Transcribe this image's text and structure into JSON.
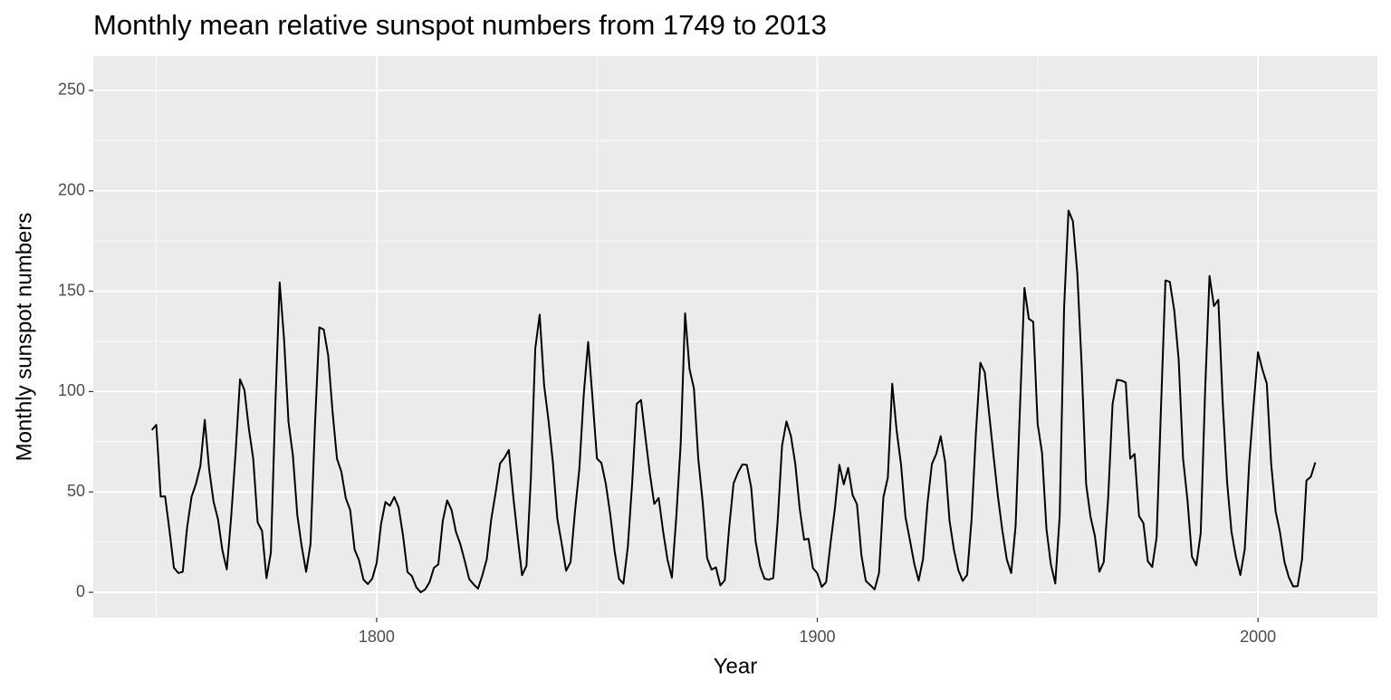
{
  "chart_data": {
    "type": "line",
    "title": "Monthly mean relative sunspot numbers from 1749 to 2013",
    "xlabel": "Year",
    "ylabel": "Monthly sunspot numbers",
    "xlim": [
      1735.7,
      2027.1
    ],
    "xticks": [
      1800,
      1900,
      2000
    ],
    "ylim": [
      -12.6,
      267.1
    ],
    "yticks": [
      0,
      50,
      100,
      150,
      200,
      250
    ],
    "grid": true,
    "x": [
      1749,
      1750,
      1751,
      1752,
      1753,
      1754,
      1755,
      1756,
      1757,
      1758,
      1759,
      1760,
      1761,
      1762,
      1763,
      1764,
      1765,
      1766,
      1767,
      1768,
      1769,
      1770,
      1771,
      1772,
      1773,
      1774,
      1775,
      1776,
      1777,
      1778,
      1779,
      1780,
      1781,
      1782,
      1783,
      1784,
      1785,
      1786,
      1787,
      1788,
      1789,
      1790,
      1791,
      1792,
      1793,
      1794,
      1795,
      1796,
      1797,
      1798,
      1799,
      1800,
      1801,
      1802,
      1803,
      1804,
      1805,
      1806,
      1807,
      1808,
      1809,
      1810,
      1811,
      1812,
      1813,
      1814,
      1815,
      1816,
      1817,
      1818,
      1819,
      1820,
      1821,
      1822,
      1823,
      1824,
      1825,
      1826,
      1827,
      1828,
      1829,
      1830,
      1831,
      1832,
      1833,
      1834,
      1835,
      1836,
      1837,
      1838,
      1839,
      1840,
      1841,
      1842,
      1843,
      1844,
      1845,
      1846,
      1847,
      1848,
      1849,
      1850,
      1851,
      1852,
      1853,
      1854,
      1855,
      1856,
      1857,
      1858,
      1859,
      1860,
      1861,
      1862,
      1863,
      1864,
      1865,
      1866,
      1867,
      1868,
      1869,
      1870,
      1871,
      1872,
      1873,
      1874,
      1875,
      1876,
      1877,
      1878,
      1879,
      1880,
      1881,
      1882,
      1883,
      1884,
      1885,
      1886,
      1887,
      1888,
      1889,
      1890,
      1891,
      1892,
      1893,
      1894,
      1895,
      1896,
      1897,
      1898,
      1899,
      1900,
      1901,
      1902,
      1903,
      1904,
      1905,
      1906,
      1907,
      1908,
      1909,
      1910,
      1911,
      1912,
      1913,
      1914,
      1915,
      1916,
      1917,
      1918,
      1919,
      1920,
      1921,
      1922,
      1923,
      1924,
      1925,
      1926,
      1927,
      1928,
      1929,
      1930,
      1931,
      1932,
      1933,
      1934,
      1935,
      1936,
      1937,
      1938,
      1939,
      1940,
      1941,
      1942,
      1943,
      1944,
      1945,
      1946,
      1947,
      1948,
      1949,
      1950,
      1951,
      1952,
      1953,
      1954,
      1955,
      1956,
      1957,
      1958,
      1959,
      1960,
      1961,
      1962,
      1963,
      1964,
      1965,
      1966,
      1967,
      1968,
      1969,
      1970,
      1971,
      1972,
      1973,
      1974,
      1975,
      1976,
      1977,
      1978,
      1979,
      1980,
      1981,
      1982,
      1983,
      1984,
      1985,
      1986,
      1987,
      1988,
      1989,
      1990,
      1991,
      1992,
      1993,
      1994,
      1995,
      1996,
      1997,
      1998,
      1999,
      2000,
      2001,
      2002,
      2003,
      2004,
      2005,
      2006,
      2007,
      2008,
      2009,
      2010,
      2011,
      2012,
      2013
    ],
    "series": [
      {
        "color": "#000000",
        "values": [
          80.9,
          83.4,
          47.7,
          47.8,
          30.7,
          12.2,
          9.6,
          10.2,
          32.4,
          47.6,
          54.0,
          62.9,
          85.9,
          61.2,
          45.1,
          36.4,
          20.9,
          11.4,
          37.8,
          69.8,
          106.1,
          100.8,
          81.6,
          66.5,
          34.8,
          30.6,
          7.0,
          19.8,
          92.5,
          154.4,
          125.9,
          84.8,
          68.1,
          38.5,
          22.8,
          10.2,
          24.1,
          82.9,
          132.0,
          130.9,
          118.1,
          89.9,
          66.6,
          60.0,
          46.9,
          41.0,
          21.3,
          16.0,
          6.4,
          4.1,
          6.8,
          14.5,
          34.0,
          45.0,
          43.1,
          47.5,
          42.2,
          28.1,
          10.1,
          8.1,
          2.5,
          0.0,
          1.4,
          5.0,
          12.2,
          13.9,
          35.4,
          45.8,
          41.0,
          30.1,
          23.9,
          15.6,
          6.6,
          4.0,
          1.8,
          8.5,
          16.6,
          36.3,
          49.6,
          64.2,
          67.0,
          70.9,
          47.8,
          27.5,
          8.5,
          13.2,
          56.9,
          121.5,
          138.3,
          103.2,
          85.7,
          64.6,
          36.7,
          24.2,
          10.7,
          15.0,
          40.1,
          61.5,
          98.5,
          124.7,
          96.3,
          66.6,
          64.5,
          54.1,
          39.0,
          20.6,
          6.7,
          4.3,
          22.7,
          54.8,
          93.8,
          95.8,
          77.2,
          59.1,
          44.0,
          47.0,
          30.5,
          16.3,
          7.3,
          37.6,
          74.0,
          139.0,
          111.2,
          101.6,
          66.2,
          44.7,
          17.0,
          11.3,
          12.4,
          3.4,
          6.0,
          32.3,
          54.3,
          59.7,
          63.7,
          63.5,
          52.2,
          25.4,
          13.1,
          6.8,
          6.3,
          7.1,
          35.6,
          73.0,
          85.1,
          78.0,
          64.0,
          41.8,
          26.2,
          26.7,
          12.1,
          9.5,
          2.7,
          5.0,
          24.4,
          42.0,
          63.5,
          53.8,
          62.0,
          48.5,
          43.9,
          18.6,
          5.7,
          3.6,
          1.4,
          9.6,
          47.4,
          57.1,
          103.9,
          80.6,
          63.6,
          37.6,
          26.1,
          14.2,
          5.8,
          16.7,
          44.3,
          63.9,
          69.0,
          77.8,
          64.9,
          35.7,
          21.2,
          11.1,
          5.7,
          8.7,
          36.1,
          79.7,
          114.4,
          109.6,
          88.8,
          67.8,
          47.5,
          30.6,
          16.3,
          9.6,
          33.2,
          92.6,
          151.6,
          136.3,
          134.7,
          83.9,
          69.4,
          31.5,
          13.9,
          4.4,
          38.0,
          141.7,
          190.2,
          184.8,
          159.0,
          112.3,
          53.9,
          37.6,
          27.9,
          10.2,
          15.1,
          47.0,
          93.8,
          105.9,
          105.5,
          104.5,
          66.6,
          68.9,
          38.0,
          34.5,
          15.5,
          12.6,
          27.5,
          92.5,
          155.4,
          154.6,
          140.4,
          115.9,
          66.6,
          45.9,
          17.9,
          13.4,
          29.4,
          100.2,
          157.6,
          142.6,
          145.7,
          94.3,
          54.6,
          29.9,
          17.5,
          8.6,
          21.5,
          64.3,
          93.3,
          119.6,
          111.0,
          104.0,
          63.7,
          40.4,
          29.8,
          15.2,
          7.5,
          2.9,
          3.1,
          16.5,
          55.7,
          57.6,
          64.7
        ]
      }
    ]
  }
}
